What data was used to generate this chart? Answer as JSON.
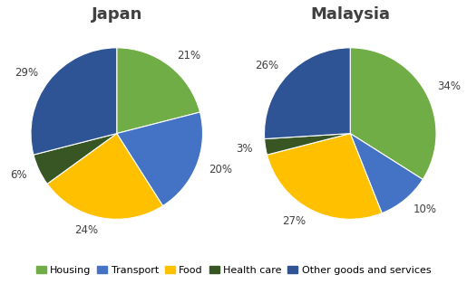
{
  "japan": {
    "title": "Japan",
    "values": [
      21,
      20,
      24,
      6,
      29
    ],
    "labels": [
      "21%",
      "20%",
      "24%",
      "6%",
      "29%"
    ],
    "startangle": 90
  },
  "malaysia": {
    "title": "Malaysia",
    "values": [
      34,
      10,
      27,
      3,
      26
    ],
    "labels": [
      "34%",
      "10%",
      "27%",
      "3%",
      "26%"
    ],
    "startangle": 90
  },
  "categories": [
    "Housing",
    "Transport",
    "Food",
    "Health care",
    "Other goods and services"
  ],
  "colors": [
    "#70AD47",
    "#4472C4",
    "#FFC000",
    "#375623",
    "#2E5496"
  ],
  "background_color": "#FFFFFF",
  "title_fontsize": 13,
  "label_fontsize": 8.5,
  "legend_fontsize": 8
}
